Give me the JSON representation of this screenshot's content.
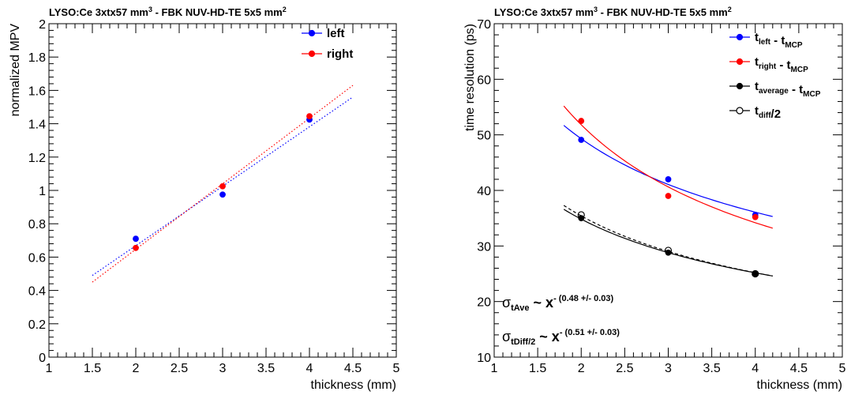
{
  "chart_data": [
    {
      "type": "scatter",
      "title": "LYSO:Ce 3xtx57 mm",
      "title_sup": "3",
      "title_rest": " - FBK NUV-HD-TE 5x5 mm",
      "title_sup2": "2",
      "xlabel": "thickness (mm)",
      "ylabel": "normalized MPV",
      "xlim": [
        1,
        5
      ],
      "ylim": [
        0,
        2
      ],
      "xticks": [
        "1",
        "1.5",
        "2",
        "2.5",
        "3",
        "3.5",
        "4",
        "4.5",
        "5"
      ],
      "yticks": [
        "0",
        "0.2",
        "0.4",
        "0.6",
        "0.8",
        "1",
        "1.2",
        "1.4",
        "1.6",
        "1.8",
        "2"
      ],
      "legend_position": "top-right",
      "series": [
        {
          "name": "left",
          "color": "#0000ff",
          "x": [
            2,
            3,
            4
          ],
          "y": [
            0.71,
            0.975,
            1.425
          ],
          "fit": {
            "style": "dotted",
            "type": "linear",
            "x_range": [
              1.5,
              4.5
            ],
            "y_range": [
              0.49,
              1.56
            ]
          }
        },
        {
          "name": "right",
          "color": "#ff0000",
          "x": [
            2,
            3,
            4
          ],
          "y": [
            0.655,
            1.025,
            1.445
          ],
          "fit": {
            "style": "dotted",
            "type": "linear",
            "x_range": [
              1.5,
              4.5
            ],
            "y_range": [
              0.45,
              1.63
            ]
          }
        }
      ]
    },
    {
      "type": "scatter",
      "title": "LYSO:Ce 3xtx57 mm",
      "title_sup": "3",
      "title_rest": " - FBK NUV-HD-TE 5x5 mm",
      "title_sup2": "2",
      "xlabel": "thickness (mm)",
      "ylabel": "time resolution (ps)",
      "xlim": [
        1,
        5
      ],
      "ylim": [
        10,
        70
      ],
      "xticks": [
        "1",
        "1.5",
        "2",
        "2.5",
        "3",
        "3.5",
        "4",
        "4.5",
        "5"
      ],
      "yticks": [
        "10",
        "20",
        "30",
        "40",
        "50",
        "60",
        "70"
      ],
      "legend_position": "top-right",
      "series": [
        {
          "name": "t_left - t_MCP",
          "legend_parts": [
            [
              "t",
              "left"
            ],
            [
              " - t",
              "MCP"
            ]
          ],
          "color": "#0000ff",
          "marker": "filled",
          "x": [
            2,
            3,
            4
          ],
          "y": [
            49.1,
            42.0,
            35.6
          ],
          "fit": {
            "style": "solid",
            "type": "power",
            "x_range": [
              1.8,
              4.2
            ],
            "y_range": [
              51.7,
              35.3
            ]
          }
        },
        {
          "name": "t_right - t_MCP",
          "legend_parts": [
            [
              "t",
              "right"
            ],
            [
              " - t",
              "MCP"
            ]
          ],
          "color": "#ff0000",
          "marker": "filled",
          "x": [
            2,
            3,
            4
          ],
          "y": [
            52.5,
            39.0,
            35.2
          ],
          "fit": {
            "style": "solid",
            "type": "power",
            "x_range": [
              1.8,
              4.2
            ],
            "y_range": [
              55.2,
              33.2
            ]
          }
        },
        {
          "name": "t_average - t_MCP",
          "legend_parts": [
            [
              "t",
              "average"
            ],
            [
              " - t",
              "MCP"
            ]
          ],
          "color": "#000000",
          "marker": "filled",
          "x": [
            2,
            3,
            4
          ],
          "y": [
            35.0,
            28.8,
            25.0
          ],
          "fit": {
            "style": "solid",
            "type": "power",
            "x_range": [
              1.8,
              4.2
            ],
            "y_range": [
              36.6,
              24.6
            ]
          }
        },
        {
          "name": "t_diff/2",
          "legend_parts": [
            [
              "t",
              "diff"
            ],
            [
              "/2",
              ""
            ]
          ],
          "color": "#000000",
          "marker": "open",
          "x": [
            2,
            3,
            4
          ],
          "y": [
            35.6,
            29.2,
            25.0
          ],
          "fit": {
            "style": "dashed",
            "type": "power",
            "x_range": [
              1.8,
              4.2
            ],
            "y_range": [
              37.3,
              24.6
            ]
          }
        }
      ],
      "annotations": [
        {
          "sigma": "σ",
          "sub": "tAve",
          "middle": " ~ x",
          "sup": "- (0.48 +/- 0.03)"
        },
        {
          "sigma": "σ",
          "sub": "tDiff/2",
          "middle": " ~ x",
          "sup": "- (0.51 +/- 0.03)"
        }
      ]
    }
  ]
}
